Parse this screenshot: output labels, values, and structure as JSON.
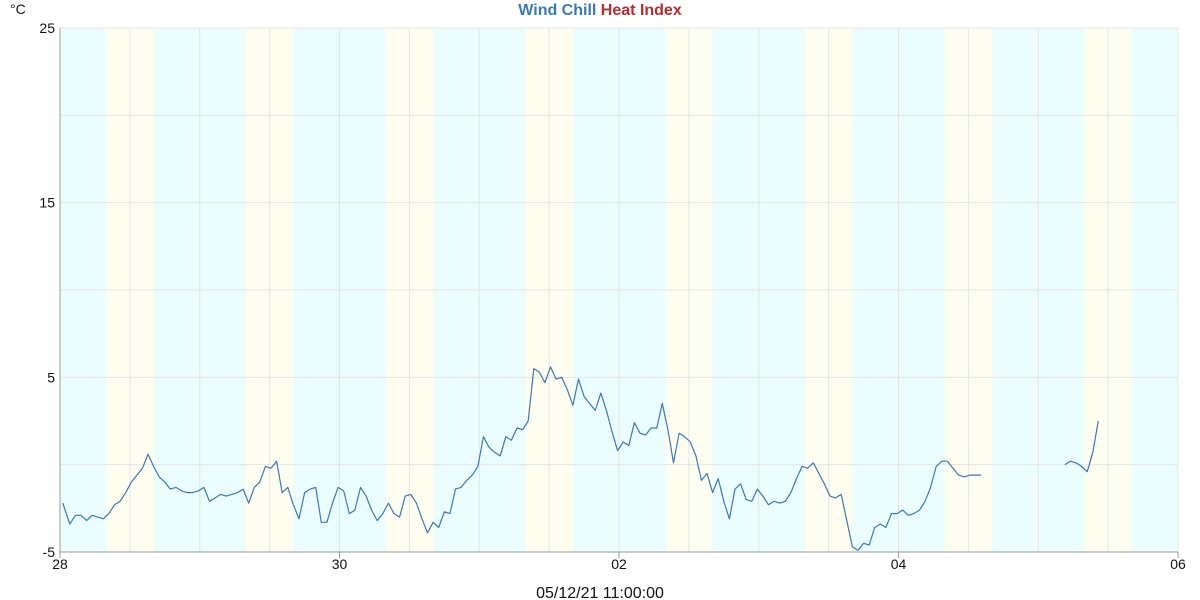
{
  "chart_data": {
    "type": "line",
    "title_parts": [
      {
        "text": "Wind Chill",
        "color": "#3a78b6"
      },
      {
        "text": " ",
        "color": "#3a78b6"
      },
      {
        "text": "Heat Index",
        "color": "#b22f2f"
      }
    ],
    "ylabel": "°C",
    "ylim": [
      -5,
      25
    ],
    "yticks": [
      {
        "value": 25,
        "label": "25"
      },
      {
        "value": 15,
        "label": "15"
      },
      {
        "value": 5,
        "label": "5"
      },
      {
        "value": -5,
        "label": "-5"
      }
    ],
    "xlim": [
      0,
      8
    ],
    "xticks": [
      {
        "value": 0,
        "label": "28"
      },
      {
        "value": 2,
        "label": "30"
      },
      {
        "value": 4,
        "label": "02"
      },
      {
        "value": 6,
        "label": "04"
      },
      {
        "value": 8,
        "label": "06"
      }
    ],
    "grid": true,
    "timestamp": "05/12/21 11:00:00",
    "colors": {
      "night_band": "#ebfdfd",
      "day_band": "#fefef0",
      "grid": "#e4e4e4",
      "axis": "#9a9a9a",
      "wind_chill": "#3a78b6",
      "heat_index": "#b22f2f"
    },
    "day_bands": [
      [
        0.33,
        0.67
      ],
      [
        1.33,
        1.67
      ],
      [
        2.33,
        2.67
      ],
      [
        3.33,
        3.67
      ],
      [
        4.33,
        4.67
      ],
      [
        5.33,
        5.67
      ],
      [
        6.33,
        6.67
      ],
      [
        7.33,
        7.67
      ]
    ],
    "series": [
      {
        "name": "Wind Chill",
        "segments": [
          [
            [
              0.02,
              -2.2
            ],
            [
              0.07,
              -3.4
            ],
            [
              0.11,
              -2.9
            ],
            [
              0.15,
              -2.9
            ],
            [
              0.19,
              -3.2
            ],
            [
              0.23,
              -2.9
            ],
            [
              0.27,
              -3
            ],
            [
              0.31,
              -3.1
            ],
            [
              0.35,
              -2.8
            ],
            [
              0.39,
              -2.3
            ],
            [
              0.43,
              -2.1
            ],
            [
              0.47,
              -1.6
            ],
            [
              0.51,
              -1
            ],
            [
              0.55,
              -0.6
            ],
            [
              0.59,
              -0.2
            ],
            [
              0.63,
              0.6
            ],
            [
              0.67,
              -0.1
            ],
            [
              0.71,
              -0.7
            ],
            [
              0.75,
              -1
            ],
            [
              0.79,
              -1.4
            ],
            [
              0.83,
              -1.3
            ],
            [
              0.87,
              -1.5
            ],
            [
              0.91,
              -1.6
            ],
            [
              0.95,
              -1.6
            ],
            [
              0.99,
              -1.5
            ],
            [
              1.03,
              -1.3
            ],
            [
              1.07,
              -2.1
            ],
            [
              1.11,
              -1.9
            ],
            [
              1.15,
              -1.7
            ],
            [
              1.19,
              -1.8
            ],
            [
              1.23,
              -1.7
            ],
            [
              1.27,
              -1.6
            ],
            [
              1.31,
              -1.4
            ],
            [
              1.35,
              -2.2
            ],
            [
              1.39,
              -1.3
            ],
            [
              1.43,
              -1
            ],
            [
              1.47,
              -0.1
            ],
            [
              1.51,
              -0.2
            ],
            [
              1.55,
              0.2
            ],
            [
              1.59,
              -1.6
            ],
            [
              1.63,
              -1.3
            ],
            [
              1.67,
              -2.3
            ],
            [
              1.71,
              -3.1
            ],
            [
              1.75,
              -1.6
            ],
            [
              1.79,
              -1.4
            ],
            [
              1.83,
              -1.3
            ],
            [
              1.87,
              -3.3
            ],
            [
              1.91,
              -3.3
            ],
            [
              1.95,
              -2.2
            ],
            [
              1.99,
              -1.3
            ],
            [
              2.03,
              -1.5
            ],
            [
              2.07,
              -2.8
            ],
            [
              2.11,
              -2.6
            ],
            [
              2.15,
              -1.3
            ],
            [
              2.19,
              -1.8
            ],
            [
              2.23,
              -2.6
            ],
            [
              2.27,
              -3.2
            ],
            [
              2.31,
              -2.8
            ],
            [
              2.35,
              -2.2
            ],
            [
              2.39,
              -2.8
            ],
            [
              2.43,
              -3
            ],
            [
              2.47,
              -1.8
            ],
            [
              2.51,
              -1.7
            ],
            [
              2.55,
              -2.2
            ],
            [
              2.59,
              -3.1
            ],
            [
              2.63,
              -3.9
            ],
            [
              2.67,
              -3.3
            ],
            [
              2.71,
              -3.6
            ],
            [
              2.75,
              -2.7
            ],
            [
              2.79,
              -2.8
            ],
            [
              2.83,
              -1.4
            ],
            [
              2.87,
              -1.3
            ],
            [
              2.91,
              -0.9
            ],
            [
              2.95,
              -0.6
            ],
            [
              2.99,
              -0.1
            ],
            [
              3.03,
              1.6
            ],
            [
              3.07,
              1
            ],
            [
              3.11,
              0.7
            ],
            [
              3.15,
              0.5
            ],
            [
              3.19,
              1.6
            ],
            [
              3.23,
              1.4
            ],
            [
              3.27,
              2.1
            ],
            [
              3.31,
              2
            ],
            [
              3.35,
              2.5
            ],
            [
              3.39,
              5.5
            ],
            [
              3.43,
              5.3
            ],
            [
              3.47,
              4.7
            ],
            [
              3.51,
              5.6
            ],
            [
              3.55,
              4.9
            ],
            [
              3.59,
              5
            ],
            [
              3.63,
              4.3
            ],
            [
              3.67,
              3.4
            ],
            [
              3.71,
              4.9
            ],
            [
              3.75,
              3.9
            ],
            [
              3.79,
              3.5
            ],
            [
              3.83,
              3.1
            ],
            [
              3.87,
              4.1
            ],
            [
              3.91,
              3.1
            ],
            [
              3.95,
              1.9
            ],
            [
              3.99,
              0.8
            ],
            [
              4.03,
              1.3
            ],
            [
              4.07,
              1.1
            ],
            [
              4.11,
              2.4
            ],
            [
              4.15,
              1.8
            ],
            [
              4.19,
              1.7
            ],
            [
              4.23,
              2.1
            ],
            [
              4.27,
              2.1
            ],
            [
              4.31,
              3.5
            ],
            [
              4.35,
              2
            ],
            [
              4.39,
              0.1
            ],
            [
              4.43,
              1.8
            ],
            [
              4.47,
              1.6
            ],
            [
              4.51,
              1.3
            ],
            [
              4.55,
              0.5
            ],
            [
              4.59,
              -0.9
            ],
            [
              4.63,
              -0.5
            ],
            [
              4.67,
              -1.6
            ],
            [
              4.71,
              -0.8
            ],
            [
              4.75,
              -2.1
            ],
            [
              4.79,
              -3.1
            ],
            [
              4.83,
              -1.4
            ],
            [
              4.87,
              -1.1
            ],
            [
              4.91,
              -2
            ],
            [
              4.95,
              -2.1
            ],
            [
              4.99,
              -1.4
            ],
            [
              5.03,
              -1.8
            ],
            [
              5.07,
              -2.3
            ],
            [
              5.11,
              -2.1
            ],
            [
              5.15,
              -2.2
            ],
            [
              5.19,
              -2.1
            ],
            [
              5.23,
              -1.6
            ],
            [
              5.27,
              -0.8
            ],
            [
              5.31,
              -0.1
            ],
            [
              5.35,
              -0.2
            ],
            [
              5.39,
              0.1
            ],
            [
              5.43,
              -0.5
            ],
            [
              5.47,
              -1.1
            ],
            [
              5.51,
              -1.8
            ],
            [
              5.55,
              -1.9
            ],
            [
              5.59,
              -1.7
            ],
            [
              5.63,
              -3.2
            ],
            [
              5.67,
              -4.7
            ],
            [
              5.71,
              -4.9
            ],
            [
              5.75,
              -4.5
            ],
            [
              5.79,
              -4.6
            ],
            [
              5.83,
              -3.6
            ],
            [
              5.87,
              -3.4
            ],
            [
              5.91,
              -3.6
            ],
            [
              5.95,
              -2.8
            ],
            [
              5.99,
              -2.8
            ],
            [
              6.03,
              -2.6
            ],
            [
              6.07,
              -2.9
            ],
            [
              6.11,
              -2.8
            ],
            [
              6.15,
              -2.6
            ],
            [
              6.19,
              -2.1
            ],
            [
              6.23,
              -1.3
            ],
            [
              6.27,
              -0.1
            ],
            [
              6.31,
              0.2
            ],
            [
              6.35,
              0.2
            ],
            [
              6.39,
              -0.2
            ],
            [
              6.43,
              -0.6
            ],
            [
              6.47,
              -0.7
            ],
            [
              6.51,
              -0.6
            ],
            [
              6.55,
              -0.6
            ],
            [
              6.59,
              -0.6
            ]
          ],
          [
            [
              7.19,
              0
            ],
            [
              7.23,
              0.2
            ],
            [
              7.27,
              0.1
            ],
            [
              7.31,
              -0.1
            ],
            [
              7.35,
              -0.4
            ],
            [
              7.39,
              0.7
            ],
            [
              7.43,
              2.5
            ]
          ]
        ]
      },
      {
        "name": "Heat Index",
        "segments": []
      }
    ]
  }
}
